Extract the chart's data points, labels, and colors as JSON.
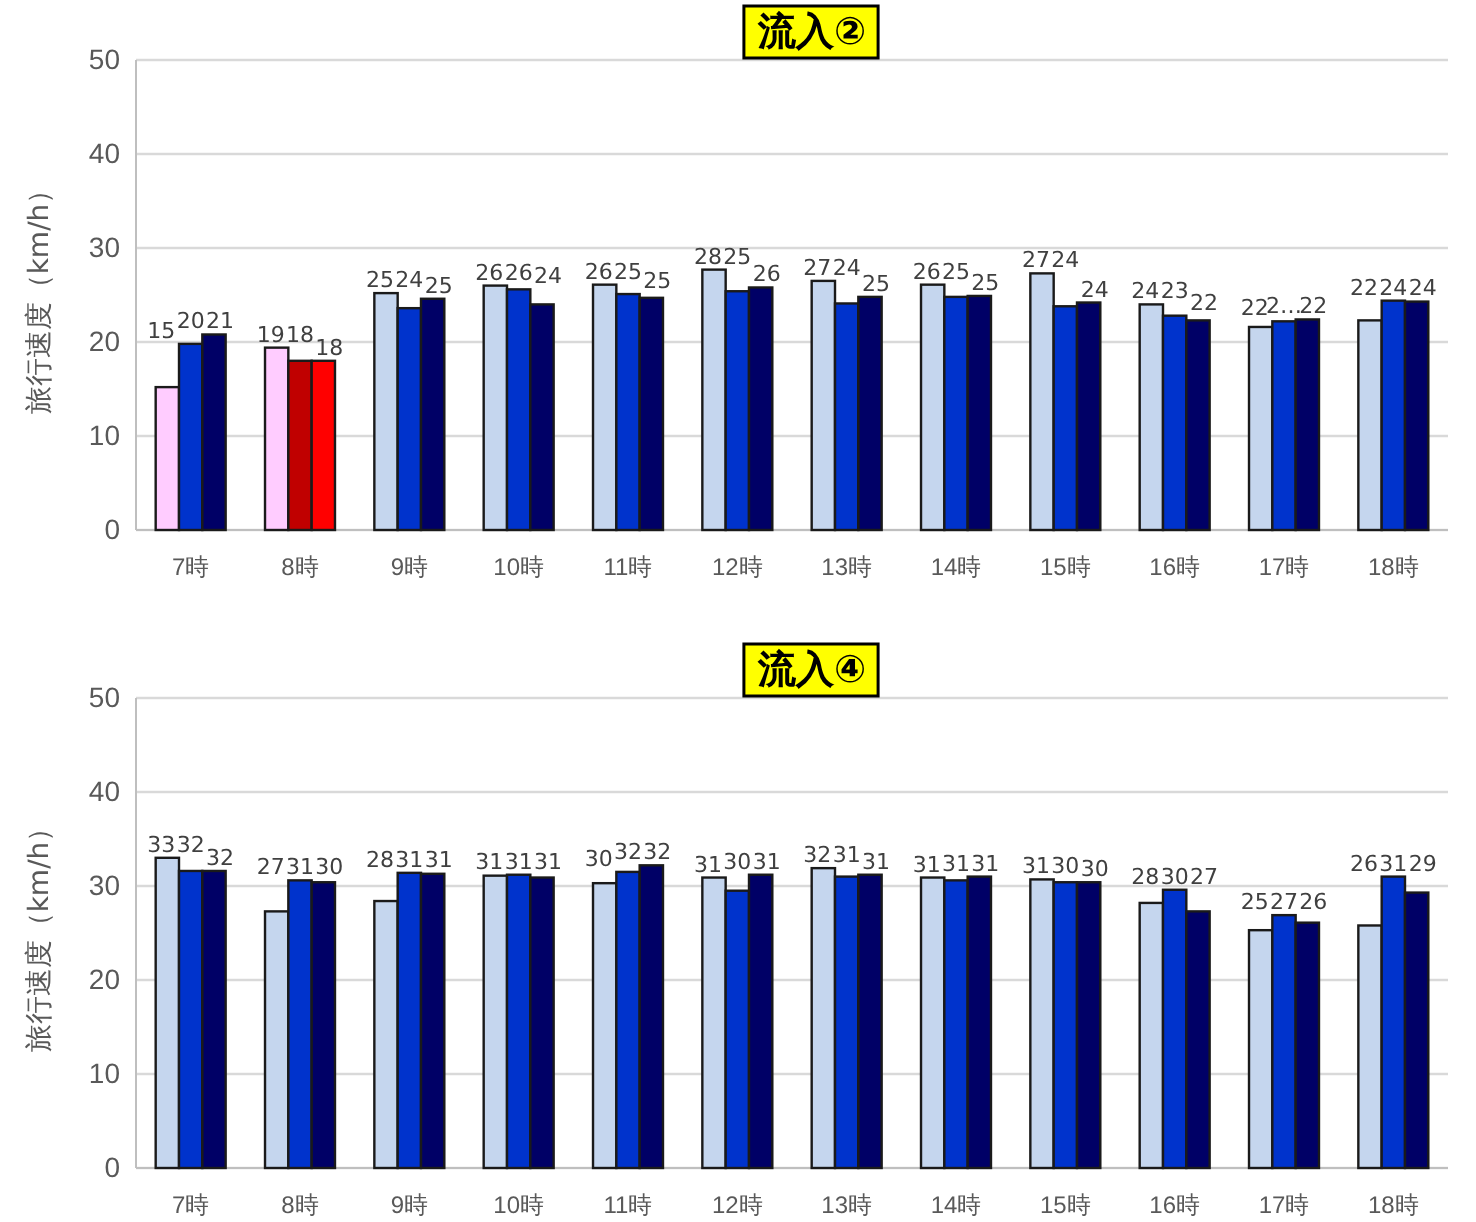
{
  "chart_data": [
    {
      "type": "bar",
      "title": "流入②",
      "ylabel": "旅行速度（km/h）",
      "categories": [
        "7時",
        "8時",
        "9時",
        "10時",
        "11時",
        "12時",
        "13時",
        "14時",
        "15時",
        "16時",
        "17時",
        "18時"
      ],
      "ylim": [
        0,
        50
      ],
      "yticks": [
        0,
        10,
        20,
        30,
        40,
        50
      ],
      "grid": "y",
      "series": [
        {
          "colors": [
            "#ffccff",
            "#ffccff",
            "#c5d6ee",
            "#c5d6ee",
            "#c5d6ee",
            "#c5d6ee",
            "#c5d6ee",
            "#c5d6ee",
            "#c5d6ee",
            "#c5d6ee",
            "#c5d6ee",
            "#c5d6ee"
          ],
          "values": [
            15.2,
            19.4,
            25.2,
            26.0,
            26.1,
            27.7,
            26.5,
            26.1,
            27.3,
            24.0,
            21.6,
            22.3
          ],
          "value_labels": [
            "15",
            "19",
            "25",
            "26",
            "26",
            "28",
            "27",
            "26",
            "27",
            "24",
            "22",
            "22"
          ]
        },
        {
          "colors": [
            "#0033cc",
            "#c00000",
            "#0033cc",
            "#0033cc",
            "#0033cc",
            "#0033cc",
            "#0033cc",
            "#0033cc",
            "#0033cc",
            "#0033cc",
            "#0033cc",
            "#0033cc"
          ],
          "values": [
            19.8,
            18.0,
            23.6,
            25.6,
            25.1,
            25.4,
            24.1,
            24.8,
            23.8,
            22.8,
            22.2,
            24.4
          ],
          "value_labels": [
            "20",
            "18",
            "24",
            "26",
            "25",
            "25",
            "24",
            "25",
            "24",
            "23",
            "2…",
            "24"
          ]
        },
        {
          "colors": [
            "#000066",
            "#ff0000",
            "#000066",
            "#000066",
            "#000066",
            "#000066",
            "#000066",
            "#000066",
            "#000066",
            "#000066",
            "#000066",
            "#000066"
          ],
          "values": [
            20.8,
            18.0,
            24.6,
            24.0,
            24.7,
            25.8,
            24.8,
            24.9,
            24.2,
            22.3,
            22.4,
            24.3
          ],
          "value_labels": [
            "21",
            "18",
            "25",
            "24",
            "25",
            "26",
            "25",
            "25",
            "24",
            "22",
            "22",
            "24"
          ]
        }
      ]
    },
    {
      "type": "bar",
      "title": "流入④",
      "ylabel": "旅行速度（km/h）",
      "categories": [
        "7時",
        "8時",
        "9時",
        "10時",
        "11時",
        "12時",
        "13時",
        "14時",
        "15時",
        "16時",
        "17時",
        "18時"
      ],
      "ylim": [
        0,
        50
      ],
      "yticks": [
        0,
        10,
        20,
        30,
        40,
        50
      ],
      "grid": "y",
      "series": [
        {
          "color": "#c5d6ee",
          "values": [
            33.0,
            27.3,
            28.4,
            31.1,
            30.3,
            30.9,
            31.9,
            30.9,
            30.7,
            28.2,
            25.3,
            25.8
          ],
          "value_labels": [
            "33",
            "27",
            "28",
            "31",
            "30",
            "31",
            "32",
            "31",
            "31",
            "28",
            "25",
            "26"
          ]
        },
        {
          "color": "#0033cc",
          "values": [
            31.6,
            30.6,
            31.4,
            31.2,
            31.5,
            29.5,
            31.0,
            30.6,
            30.4,
            29.6,
            26.9,
            31.0
          ],
          "value_labels": [
            "32",
            "31",
            "31",
            "31",
            "32",
            "30",
            "31",
            "31",
            "30",
            "30",
            "27",
            "31"
          ]
        },
        {
          "color": "#000066",
          "values": [
            31.6,
            30.4,
            31.3,
            30.9,
            32.2,
            31.2,
            31.2,
            31.0,
            30.4,
            27.3,
            26.1,
            29.3
          ],
          "value_labels": [
            "32",
            "30",
            "31",
            "31",
            "32",
            "31",
            "31",
            "31",
            "30",
            "27",
            "26",
            "29"
          ]
        }
      ]
    }
  ]
}
